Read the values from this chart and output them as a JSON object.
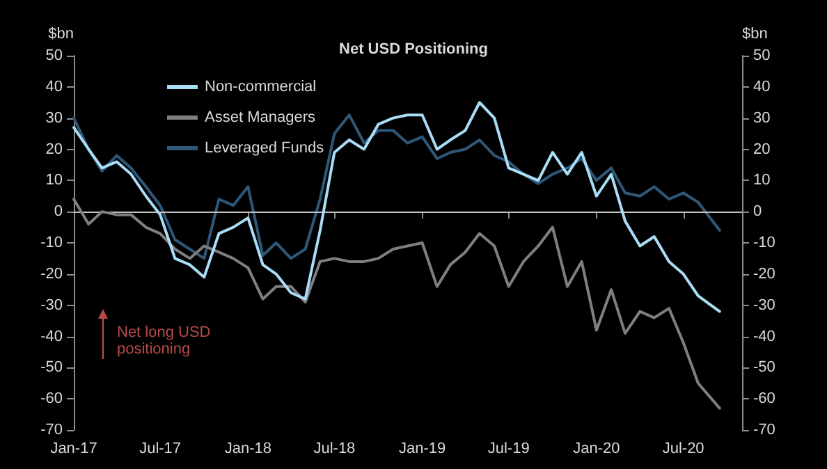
{
  "chart_data": {
    "type": "line",
    "title": "Net USD Positioning",
    "ylabel": "$bn",
    "y2label": "$bn",
    "annotations": [
      "Net long USD positioning"
    ],
    "x": [
      "2017-01-01",
      "2017-02-01",
      "2017-03-01",
      "2017-04-01",
      "2017-05-01",
      "2017-06-01",
      "2017-07-01",
      "2017-08-01",
      "2017-09-01",
      "2017-10-01",
      "2017-11-01",
      "2017-12-01",
      "2018-01-01",
      "2018-02-01",
      "2018-03-01",
      "2018-04-01",
      "2018-05-01",
      "2018-06-01",
      "2018-07-01",
      "2018-08-01",
      "2018-09-01",
      "2018-10-01",
      "2018-11-01",
      "2018-12-01",
      "2019-01-01",
      "2019-02-01",
      "2019-03-01",
      "2019-04-01",
      "2019-05-01",
      "2019-06-01",
      "2019-07-01",
      "2019-08-01",
      "2019-09-01",
      "2019-10-01",
      "2019-11-01",
      "2019-12-01",
      "2020-01-01",
      "2020-02-01",
      "2020-03-01",
      "2020-04-01",
      "2020-05-01",
      "2020-06-01",
      "2020-07-01",
      "2020-08-01",
      "2020-09-15"
    ],
    "series": [
      {
        "name": "Non-commercial",
        "color": "#a9dcf5",
        "values": [
          27,
          20,
          14,
          16,
          12,
          5,
          -1,
          -15,
          -17,
          -21,
          -7,
          -5,
          -2,
          -17,
          -20,
          -26,
          -28,
          -6,
          19,
          23,
          20,
          28,
          30,
          31,
          31,
          20,
          23,
          26,
          35,
          30,
          14,
          12,
          10,
          19,
          12,
          19,
          5,
          12,
          -3,
          -11,
          -8,
          -16,
          -20,
          -27,
          -32
        ]
      },
      {
        "name": "Asset Managers",
        "color": "#7f7f7f",
        "values": [
          4,
          -4,
          0,
          -1,
          -1,
          -5,
          -7,
          -12,
          -15,
          -11,
          -13,
          -15,
          -18,
          -28,
          -24,
          -24,
          -29,
          -16,
          -15,
          -16,
          -16,
          -15,
          -12,
          -11,
          -10,
          -24,
          -17,
          -13,
          -7,
          -11,
          -24,
          -16,
          -11,
          -5,
          -24,
          -16,
          -38,
          -25,
          -39,
          -32,
          -34,
          -31,
          -42,
          -55,
          -63
        ]
      },
      {
        "name": "Leveraged Funds",
        "color": "#2e5778",
        "values": [
          30,
          20,
          13,
          18,
          14,
          8,
          2,
          -9,
          -12,
          -15,
          4,
          2,
          8,
          -14,
          -10,
          -15,
          -12,
          4,
          25,
          31,
          22,
          26,
          26,
          22,
          24,
          17,
          19,
          20,
          23,
          18,
          16,
          12,
          9,
          12,
          14,
          17,
          10,
          14,
          6,
          5,
          8,
          4,
          6,
          3,
          -6
        ]
      }
    ],
    "xlim": [
      "2017-01-01",
      "2020-11-01"
    ],
    "xticks": [
      {
        "value": "2017-01-01",
        "label": "Jan-17"
      },
      {
        "value": "2017-07-01",
        "label": "Jul-17"
      },
      {
        "value": "2018-01-01",
        "label": "Jan-18"
      },
      {
        "value": "2018-07-01",
        "label": "Jul-18"
      },
      {
        "value": "2019-01-01",
        "label": "Jan-19"
      },
      {
        "value": "2019-07-01",
        "label": "Jul-19"
      },
      {
        "value": "2020-01-01",
        "label": "Jan-20"
      },
      {
        "value": "2020-07-01",
        "label": "Jul-20"
      }
    ],
    "ylim": [
      -70,
      50
    ],
    "yticks": [
      -70,
      -60,
      -50,
      -40,
      -30,
      -20,
      -10,
      0,
      10,
      20,
      30,
      40,
      50
    ],
    "y2lim": [
      -70,
      50
    ],
    "y2ticks": [
      -70,
      -60,
      -50,
      -40,
      -30,
      -20,
      -10,
      0,
      10,
      20,
      30,
      40,
      50
    ],
    "ref_lines": [
      {
        "axis": "y",
        "value": 0,
        "label": null,
        "color": "#bfbfbf"
      }
    ],
    "legend": "top left",
    "grid": false,
    "marker": "none",
    "line_style": "solid"
  }
}
